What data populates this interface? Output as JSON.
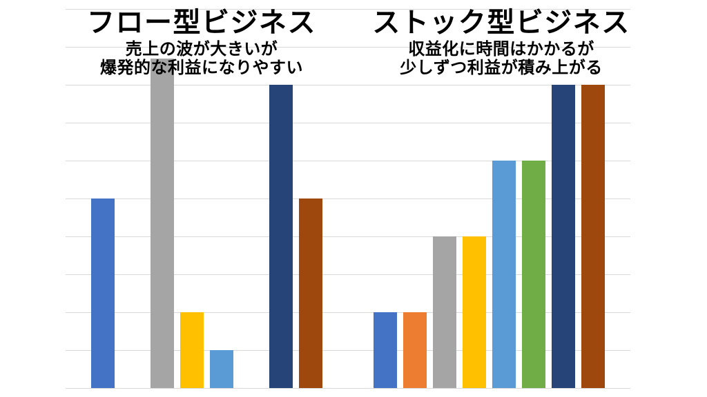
{
  "background_color": "#ffffff",
  "grid_color": "#d9d9d9",
  "text_color": "#000000",
  "annotations": {
    "flow": {
      "title": "フロー型ビジネス",
      "subtitle_line1": "売上の波が大きいが",
      "subtitle_line2": "爆発的な利益になりやすい"
    },
    "stock": {
      "title": "ストック型ビジネス",
      "subtitle_line1": "収益化に時間はかかるが",
      "subtitle_line2": "少しずつ利益が積み上がる"
    }
  },
  "chart_data": {
    "type": "bar",
    "title": "",
    "xlabel": "",
    "ylabel": "",
    "categories": [
      "フロー型ビジネス",
      "ストック型ビジネス"
    ],
    "category_descriptions": [
      "売上の波が大きいが 爆発的な利益になりやすい",
      "収益化に時間はかかるが 少しずつ利益が積み上がる"
    ],
    "series": [
      {
        "name": "series-1-blue",
        "color": "#4472C4",
        "values": [
          5,
          2
        ]
      },
      {
        "name": "series-2-orange",
        "color": "#ED7D31",
        "values": [
          0,
          2
        ]
      },
      {
        "name": "series-3-gray",
        "color": "#A5A5A5",
        "values": [
          8.7,
          4
        ]
      },
      {
        "name": "series-4-yellow",
        "color": "#FFC000",
        "values": [
          2,
          4
        ]
      },
      {
        "name": "series-5-light-blue",
        "color": "#5B9BD5",
        "values": [
          1,
          6
        ]
      },
      {
        "name": "series-6-green",
        "color": "#70AD47",
        "values": [
          0,
          6
        ]
      },
      {
        "name": "series-7-dark-navy",
        "color": "#264478",
        "values": [
          8,
          8
        ]
      },
      {
        "name": "series-8-brown",
        "color": "#9E480E",
        "values": [
          5,
          8
        ]
      }
    ],
    "ylim": [
      0,
      10
    ],
    "gridline_interval": 1,
    "grid": "on",
    "legend": "none",
    "axis_tick_labels": "none"
  }
}
